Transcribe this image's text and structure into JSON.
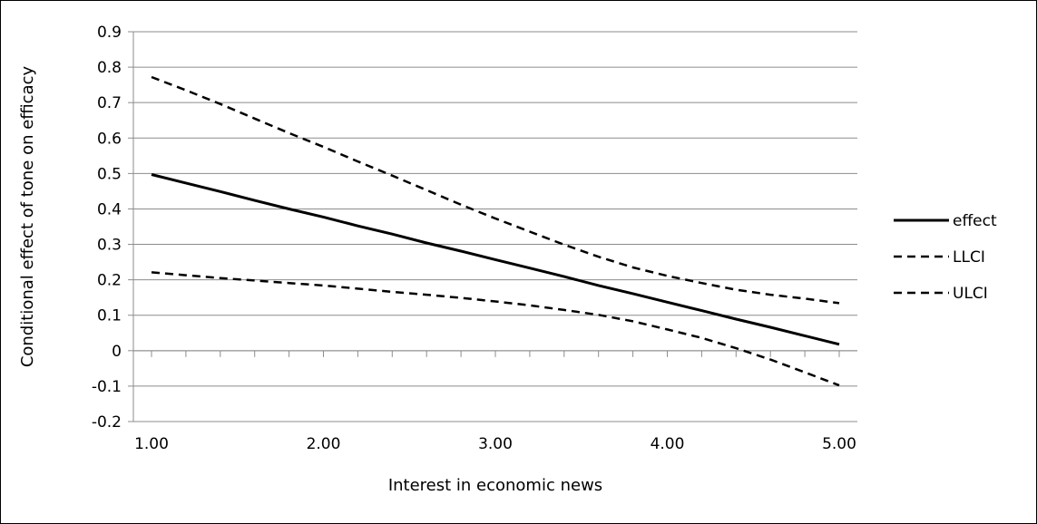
{
  "chart_data": {
    "type": "line",
    "title": "",
    "xlabel": "Interest in economic news",
    "ylabel": "Conditional effect of tone on efficacy",
    "xlim": [
      1.0,
      5.0
    ],
    "ylim": [
      -0.2,
      0.9
    ],
    "x_ticks": [
      "1.00",
      "2.00",
      "3.00",
      "4.00",
      "5.00"
    ],
    "y_ticks": [
      "0.9",
      "0.8",
      "0.7",
      "0.6",
      "0.5",
      "0.4",
      "0.3",
      "0.2",
      "0.1",
      "0",
      "-0.1",
      "-0.2"
    ],
    "grid": "horizontal",
    "legend_position": "right",
    "x": [
      1.0,
      1.2,
      1.4,
      1.6,
      1.8,
      2.0,
      2.2,
      2.4,
      2.6,
      2.8,
      3.0,
      3.2,
      3.4,
      3.6,
      3.8,
      4.0,
      4.2,
      4.4,
      4.6,
      4.8,
      5.0
    ],
    "series": [
      {
        "name": "effect",
        "style": "solid",
        "values": [
          0.497,
          0.473,
          0.449,
          0.424,
          0.4,
          0.377,
          0.352,
          0.329,
          0.304,
          0.281,
          0.257,
          0.233,
          0.209,
          0.184,
          0.161,
          0.137,
          0.113,
          0.089,
          0.066,
          0.042,
          0.018
        ]
      },
      {
        "name": "LLCI",
        "style": "dashed",
        "values": [
          0.221,
          0.213,
          0.205,
          0.198,
          0.191,
          0.184,
          0.175,
          0.166,
          0.158,
          0.149,
          0.139,
          0.128,
          0.115,
          0.101,
          0.083,
          0.06,
          0.036,
          0.007,
          -0.025,
          -0.061,
          -0.098
        ]
      },
      {
        "name": "ULCI",
        "style": "dashed",
        "values": [
          0.772,
          0.735,
          0.696,
          0.655,
          0.614,
          0.575,
          0.534,
          0.494,
          0.453,
          0.412,
          0.373,
          0.336,
          0.299,
          0.265,
          0.235,
          0.211,
          0.191,
          0.172,
          0.158,
          0.147,
          0.134
        ]
      }
    ]
  }
}
